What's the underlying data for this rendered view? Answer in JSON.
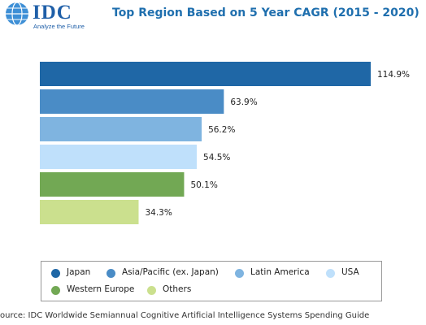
{
  "logo": {
    "name": "IDC",
    "tagline": "Analyze the Future"
  },
  "chart_data": {
    "type": "bar",
    "orientation": "horizontal",
    "title": "Top Region Based on 5 Year CAGR (2015 - 2020)",
    "categories": [
      "Japan",
      "Asia/Pacific (ex. Japan)",
      "Latin America",
      "USA",
      "Western Europe",
      "Others"
    ],
    "values": [
      114.9,
      63.9,
      56.2,
      54.5,
      50.1,
      34.3
    ],
    "value_labels": [
      "114.9%",
      "63.9%",
      "56.2%",
      "54.5%",
      "50.1%",
      "34.3%"
    ],
    "colors": [
      "#1f67a6",
      "#4a8cc6",
      "#7fb4e0",
      "#bfe0fb",
      "#72a854",
      "#cbe08e"
    ],
    "unit": "%",
    "grid": false,
    "legend_position": "bottom"
  },
  "source": "ource: IDC Worldwide Semiannual Cognitive Artificial Intelligence Systems Spending Guide"
}
